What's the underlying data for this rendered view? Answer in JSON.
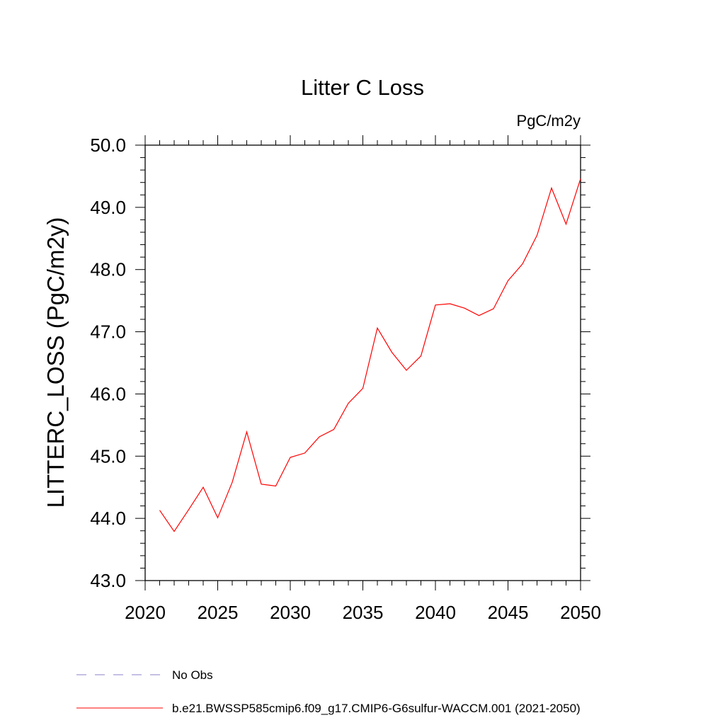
{
  "chart_data": {
    "type": "line",
    "title": "Litter C Loss",
    "units": "PgC/m2y",
    "ylabel": "LITTERC_LOSS  (PgC/m2y)",
    "xlabel": "",
    "xlim": [
      2020,
      2050
    ],
    "ylim": [
      43.0,
      50.0
    ],
    "x_ticks": [
      2020,
      2025,
      2030,
      2035,
      2040,
      2045,
      2050
    ],
    "x_tick_labels": [
      "2020",
      "2025",
      "2030",
      "2035",
      "2040",
      "2045",
      "2050"
    ],
    "y_ticks": [
      43.0,
      44.0,
      45.0,
      46.0,
      47.0,
      48.0,
      49.0,
      50.0
    ],
    "y_tick_labels": [
      "43.0",
      "44.0",
      "45.0",
      "46.0",
      "47.0",
      "48.0",
      "49.0",
      "50.0"
    ],
    "series": [
      {
        "name": "b.e21.BWSSP585cmip6.f09_g17.CMIP6-G6sulfur-WACCM.001 (2021-2050)",
        "color": "#ff0000",
        "x": [
          2021,
          2022,
          2023,
          2024,
          2025,
          2026,
          2027,
          2028,
          2029,
          2030,
          2031,
          2032,
          2033,
          2034,
          2035,
          2036,
          2037,
          2038,
          2039,
          2040,
          2041,
          2042,
          2043,
          2044,
          2045,
          2046,
          2047,
          2048,
          2049,
          2050
        ],
        "values": [
          44.13,
          43.79,
          44.14,
          44.5,
          44.01,
          44.58,
          45.39,
          44.55,
          44.52,
          44.98,
          45.05,
          45.31,
          45.43,
          45.85,
          46.09,
          47.06,
          46.67,
          46.38,
          46.61,
          47.43,
          47.45,
          47.38,
          47.26,
          47.37,
          47.82,
          48.09,
          48.55,
          49.31,
          48.73,
          49.46
        ]
      }
    ],
    "legend": [
      {
        "label": "No Obs",
        "style": "dashed",
        "color": "#8c82c8"
      },
      {
        "label": "b.e21.BWSSP585cmip6.f09_g17.CMIP6-G6sulfur-WACCM.001 (2021-2050)",
        "style": "solid",
        "color": "#ff0000"
      }
    ],
    "legend_position": "bottom-left",
    "grid": false
  }
}
